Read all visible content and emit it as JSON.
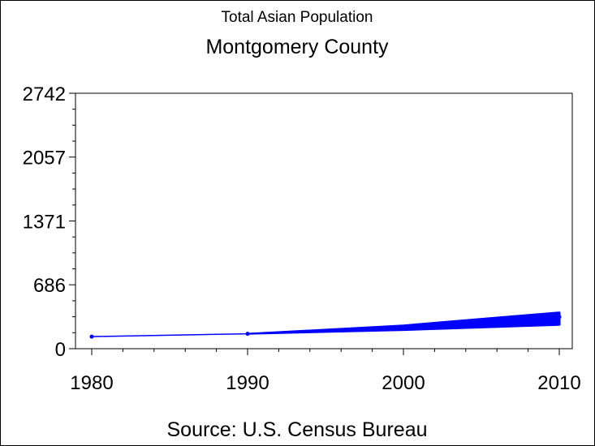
{
  "chart_data": {
    "type": "line",
    "title": "Montgomery County",
    "subtitle": "Total Asian Population",
    "footnote": "Source: U.S. Census Bureau",
    "xlabel": "",
    "ylabel": "",
    "x_ticks": [
      1980,
      1990,
      2000,
      2010
    ],
    "x_tick_labels": [
      "1980",
      "1990",
      "2000",
      "2010"
    ],
    "xlim": [
      1980,
      2010
    ],
    "y_ticks": [
      0,
      686,
      1371,
      2057,
      2742
    ],
    "y_tick_labels": [
      "0",
      "686",
      "1371",
      "2057",
      "2742"
    ],
    "ylim": [
      0,
      2742
    ],
    "grid": false,
    "series": [
      {
        "color": "#0000ff",
        "x": [
          1980,
          1990,
          2000,
          2010
        ],
        "values": [
          130,
          160,
          230,
          340
        ]
      }
    ],
    "uncertainty_band": {
      "color": "#0000ff",
      "x": [
        1990,
        2000,
        2010
      ],
      "lower": [
        155,
        195,
        250
      ],
      "upper": [
        165,
        255,
        395
      ]
    }
  }
}
